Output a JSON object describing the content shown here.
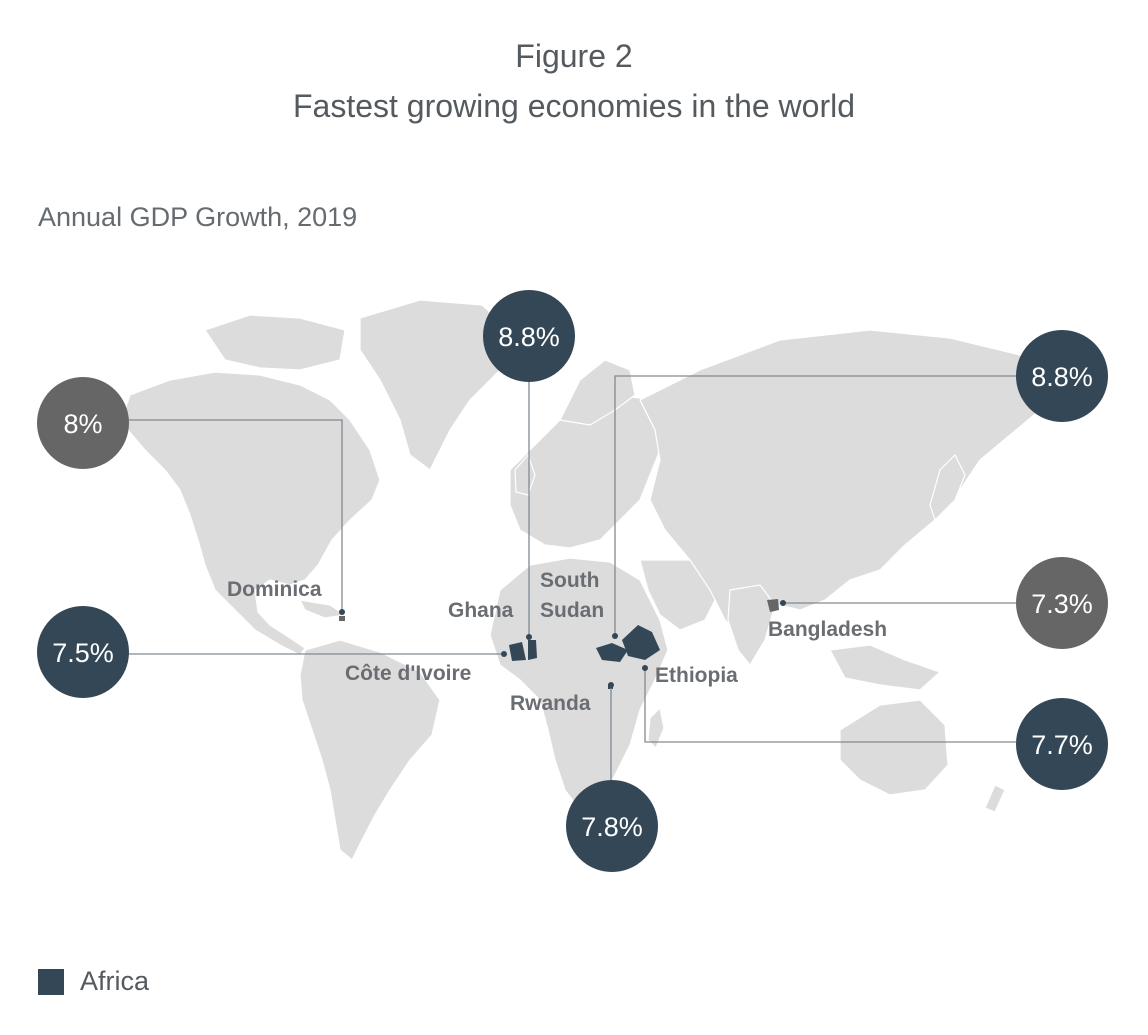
{
  "figure_label": "Figure 2",
  "title": "Fastest growing economies in the world",
  "subtitle": "Annual GDP Growth, 2019",
  "legend": {
    "label": "Africa",
    "color": "#344756"
  },
  "colors": {
    "africa": "#344756",
    "other": "#666666",
    "land": "#dcdcdc",
    "leader_line": "#7f8a93"
  },
  "countries": [
    {
      "id": "ghana",
      "name": "Ghana",
      "growth": "8.8%",
      "region": "Africa"
    },
    {
      "id": "south-sudan",
      "name": "South Sudan",
      "name_line1": "South",
      "name_line2": "Sudan",
      "growth": "8.8%",
      "region": "Africa"
    },
    {
      "id": "dominica",
      "name": "Dominica",
      "growth": "8%",
      "region": "Other"
    },
    {
      "id": "cote-divoire",
      "name": "Côte d'Ivoire",
      "growth": "7.5%",
      "region": "Africa"
    },
    {
      "id": "bangladesh",
      "name": "Bangladesh",
      "growth": "7.3%",
      "region": "Other"
    },
    {
      "id": "ethiopia",
      "name": "Ethiopia",
      "growth": "7.7%",
      "region": "Africa"
    },
    {
      "id": "rwanda",
      "name": "Rwanda",
      "growth": "7.8%",
      "region": "Africa"
    }
  ]
}
